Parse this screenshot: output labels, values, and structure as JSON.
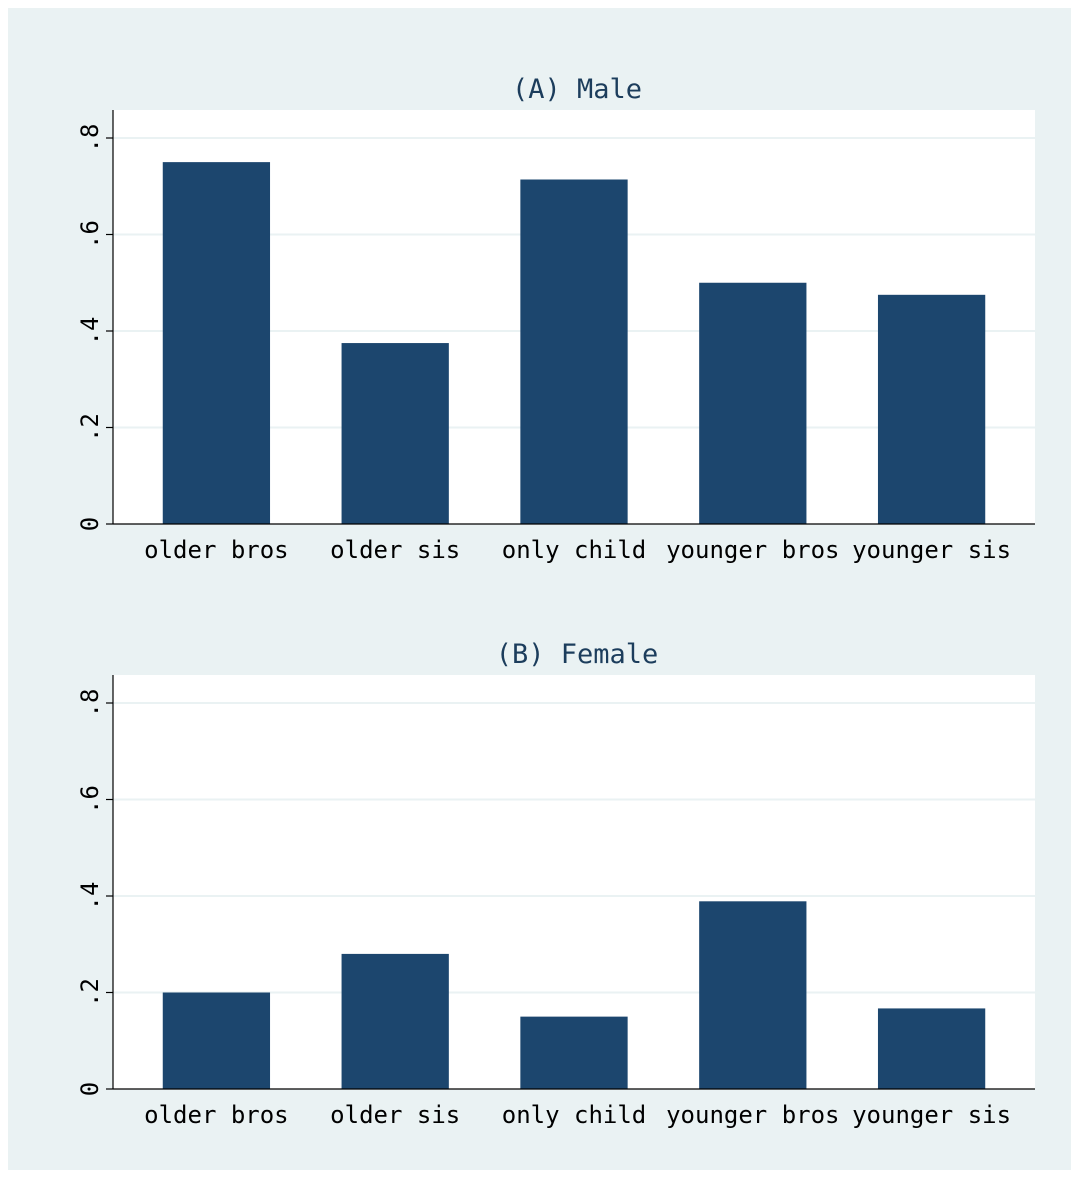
{
  "colors": {
    "page_background": "#ffffff",
    "figure_background": "#eaf2f3",
    "plot_background": "#ffffff",
    "bar": "#1c466e",
    "gridline": "#eaf2f3",
    "axis": "#000000",
    "text": "#000000",
    "title": "#1c3d5c"
  },
  "chart_data": [
    {
      "type": "bar",
      "title": "(A) Male",
      "xlabel": "",
      "ylabel": "",
      "categories": [
        "older bros",
        "older sis",
        "only child",
        "younger bros",
        "younger sis"
      ],
      "values": [
        0.75,
        0.375,
        0.714,
        0.5,
        0.475
      ],
      "ylim": [
        0,
        0.8
      ],
      "yticks": [
        0,
        0.2,
        0.4,
        0.6,
        0.8
      ],
      "ytick_labels": [
        "0",
        ".2",
        ".4",
        ".6",
        ".8"
      ],
      "grid": true,
      "legend": "none"
    },
    {
      "type": "bar",
      "title": "(B) Female",
      "xlabel": "",
      "ylabel": "",
      "categories": [
        "older bros",
        "older sis",
        "only child",
        "younger bros",
        "younger sis"
      ],
      "values": [
        0.2,
        0.28,
        0.15,
        0.389,
        0.167
      ],
      "ylim": [
        0,
        0.8
      ],
      "yticks": [
        0,
        0.2,
        0.4,
        0.6,
        0.8
      ],
      "ytick_labels": [
        "0",
        ".2",
        ".4",
        ".6",
        ".8"
      ],
      "grid": true,
      "legend": "none"
    }
  ]
}
